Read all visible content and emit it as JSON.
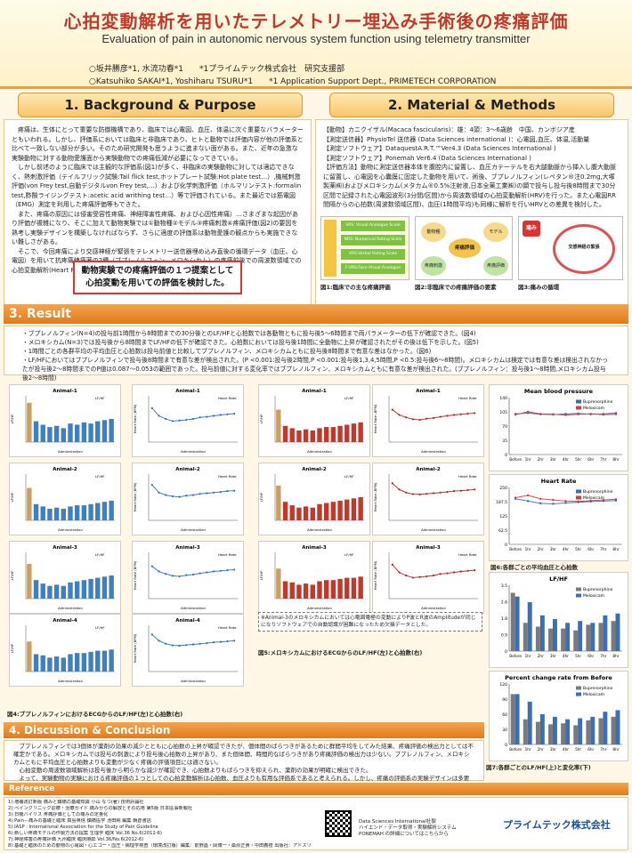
{
  "header": {
    "title_jp": "心拍変動解析を用いたテレメトリー埋込み手術後の疼痛評価",
    "title_en": "Evaluation of pain in autonomic nervous system function using telemetry transmitter",
    "author_line_1": "○坂井勝彦*1, 水流功春*1　　*1プライムテック株式会社　研究支援部",
    "author_line_2": "○Katsuhiko SAKAI*1, Yoshiharu TSURU*1　　*1 Application Support Dept., PRIMETECH CORPORATION"
  },
  "sections": {
    "background": "1. Background & Purpose",
    "methods": "2. Material & Methods",
    "result": "3. Result",
    "discussion": "4. Discussion & Conclusion",
    "reference": "Reference"
  },
  "background": {
    "paragraphs": [
      "疼痛は、生体にとって重要な防御機構であり、臨床では心電図、血圧、体温に次ぐ重要なバラメーターともいわれる。しかし、評価系においては臨床と非臨床であり、ヒトと動物では評価内容が他の評価系と比べて一致しない部分が多い。そのため研究開発も思うように進まない面がある。また、近年の急激な実験動物に対する動物愛護面から実験動物での疼痛低減が必要になってきている。",
      "しかし前述のように臨床では主観的な評価系(図1)が多く、非臨床の実験動物に対しては適応できなく、熱刺激評価（テイルフリック試験:Tail flick test,ホットプレート試験:Hot plate test…）,機械刺激評価(von Frey test,自動デジタルvon Frey test,…）および化学刺激評価（ホルマリンテスト:formalin test,酢酸ライジングテスト:acetic acid writhing test…）等で評価されている。また最近では筋電図（EMG）測定を利用した疼痛評価等もできた。",
      "また、疼痛の原因には侵害受容性疼痛、神経障害性疼痛、および心因性疼痛）…さまざまな起因があり評価が複雑になり、そこに加えて動物実験では①動物種②モデル③疼痛刺激④疼痛評価(図2)の要因を熟考し実験デザインを構築しなければならず、さらに適度の評価系は動物愛護の観点からも実施できない難しさがある。",
      "そこで、今回疼痛により交感神経が緊張をテレメトリー送信器埋め込み直後の循環データ（血圧、心電図）を用いて抗疼痛鎮痛薬の2種（ブプレノルフィン、メロキシカム）の疼痛前後での周波数領域での心拍変動解析(Heart Rate Variability)評価の可能性を検討した。(図3)"
    ],
    "conclusion_box": "動物実験での疼痛評価の１つ提案として心拍変動を用いての評価を検討した。"
  },
  "methods": {
    "lines": [
      "【動物】カニクイザル(Macaca fascicularis)：雄：4頭：3～6歳齢　中国、カンボジア産",
      "【測定送信器】PhysioTel 送信器 (Data Sciences international )：心電図,血圧、体温,活動量",
      "【測定ソフトウェア】DataquestA.R.T.™Ver4.3 (Data Sciences International )",
      "【測定ソフトウェア】Ponemah Ver6.4 (Data Sciences International )",
      "【評価方法】動物に測定送信器本体を腹腔内に留置し、血圧カテーテルを右大腿動脈から挿入し腹大動脈に留置し、心電図を心囊膜に固定した動物を用いて、術後、ブプレノルフィン(レペタン®注0.2mg,大塚製薬㈱)およびメロキシカム(メタカム®0.5%注射液,日本全薬工業㈱)の顕で投与し投与後8時間まで30分区間で記録された心電図波形(3分間/区間)から周波数領域の心拍変動解析(HRV)を行った。また心電図RR間隔からの心拍数(周波数領域区間)、血圧(1時間平均)も同様に解析を行いHRVとの差異を検討した。"
    ],
    "fig1_items": [
      "VAS: Visual Analogue Scale",
      "NRS: Numerical Rating Scale",
      "VRS:Verbal Rating Scale",
      "F-VRS:Face Visual Analogue Scale"
    ],
    "fig1_caption": "図1:臨床での主な疼痛評価",
    "fig2_center": "疼痛評価",
    "fig2_labels": [
      "動物種",
      "モデル",
      "疼痛刺激",
      "疼痛評価"
    ],
    "fig2_caption": "図2:非臨床での疼痛評価の要素",
    "fig3_center": "交感神経の緊張",
    "fig3_pain": "痛み",
    "fig3_caption": "図3:痛みの循環"
  },
  "result": {
    "bullets": [
      "・ブプレノルフィン(N=4)の投与前1時間から8時間までの30分後とのLF/HFと心拍数では各動物ともに投与後5～6時間まで両パラメーターの低下が確認できた。(図4)",
      "・メロキシカム(N=3)では投与後から8時間までLF/HFの低下が確認できた。心拍数においては投与後1時間に全動物に上昇が確認されたがその後は低下を示した。(図5)",
      "・1時間ごとの各群平均の平均血圧と心拍数は投与前値と比較してブプレノルフィン、メロキシカムともに投与後8時間まで有意な差はなかった。(図6)",
      "・LF/HFにおいてはブプレノルフィンで投与後8時間まで有意な差が検出された。(P <0.001:投与後2時間,P <0.001:投与後1,3,4,5時間,P <0.5:投与後6～8時間)。メロキシカムは検定では有意な差は検出されなかったが投与後2～8時間までのP値は0.087～0.053の範囲であった。投与前値に対する変化率ではブプレノルフィン、メロキシカムともに有意な差が検出された。(ブプレノルフィン：投与後1～8時間,メロキシカム投与後2～8時間)"
    ],
    "bup_labels": [
      "Animal-1",
      "Animal-2",
      "Animal-3",
      "Animal-4"
    ],
    "mel_labels": [
      "Animal-1",
      "Animal-2",
      "Animal-3",
      "Animal-4"
    ],
    "axis_x": "Administration",
    "axis_y_lfhf": "LF/HF",
    "axis_y_hr": "Heart Rate (BPM)",
    "legend_lfhf": "LF/HF",
    "legend_hr": "Heart Rate",
    "fig4_caption": "図4:ブプレノルフィンにおけるECGからのLF/HF(左)と心拍数(右)",
    "fig5_caption": "図5:メロキシカムにおけるECGからのLF/HF(左)と心拍数(右)",
    "fig5_note": "※Animal-3のメロキシカムにおいては心電図電極の変動によりP波とR波のAmplitudeが同じになりソフトウェアでの自動認識が困難になったため欠損データとした。",
    "mbp_title": "Mean blood pressure",
    "hr_title": "Heart Rate",
    "lfhf_title": "LF/HF",
    "pct_title": "Percent change rate from Before",
    "series_names": [
      "Buprenorphine",
      "Meloxicam"
    ],
    "fig6_caption": "図6:各群ごとの平均血圧と心拍数",
    "fig7_caption": "図7:各群ごとのLF/HF(上)と変化率(下)",
    "stat_note": "Each histogram/line the mean ±SE",
    "x_categories": [
      "Before",
      "1hr",
      "2hr",
      "3hr",
      "4hr",
      "5hr",
      "6hr",
      "7hr",
      "8hr"
    ]
  },
  "discussion": {
    "paragraphs": [
      "ブプレノルフィンでは3個体が薬剤の効果の減少とともに心拍数の上昇が確認できたが、個体間のばらつきがあるために群間平均をしてみた結果、疼痛評価の検出力としては不確定かである。メロキシカムでは投与の刺激により投与後心拍数の上昇があり、また個体間、時間的なばらつきがあり疼痛評価の検出力は少ない。ブプレノルフィン、メロキシカムともに平均血圧と心拍数よりも変動が少なく疼痛の評価項目には適さない。",
      "心拍変動の周波数領域解析は投与後から明らかな減少が確認でき、心拍数よりもばらつきを抑えられ、薬剤の効果が明確に検出できた。",
      "よって、実験動物の実験における疼痛評価の１つとしての心拍変動解析は心拍数、血圧よりも有用な評価系であると考えられる。しかし、疼痛の評価系の実験デザインは多要素からなり複雑になるため実験の疼痛評価の目的に合わせた評価方法を検討する必要がある。"
    ]
  },
  "references": [
    "1):増補改訂新版 痛みと鎮痛の基礎知識 小山 なつ(著) 技術評論社",
    "2):ペインクリニック診療・治療ガイド 痛みからの解放とその応用 第5版 日本医事新報社",
    "3):日機バイリス 疼痛評価としての痛みの定量化",
    "4):Pain－痛みの基礎と臨床 真島英信 鎮痛医学 池田純 編集 朝倉書店",
    "5):IASP : International Association for the Study of Pain Guideline",
    "6):新しい疼痛モデルの作製方法の提案 生理学 臨床 Vol.36 No.6(2012-6)",
    "7):神経障害の疼痛評価 九州臨床 臨床麻酔 Vol.36/No.6(2012-6)",
    "8):基礎と臨床のための動物の心電図・心エコー・血圧・病理学検査（環境改訂版）編集：前野昌・岡博一・桑原正貴・中田義禮 出版社：アドスリー"
  ],
  "footer": {
    "dsi_text": "Data Sciences International社製\nハイエンド・データ取得・実験解析システム\nPONEMAH の詳細についてはこちらから",
    "logo_text": "プライムテック株式会社"
  },
  "chart_data": [
    {
      "type": "bar",
      "title": "LF/HF",
      "series": [
        {
          "name": "Buprenorphine",
          "values": [
            3.1,
            1.5,
            1.3,
            1.2,
            1.2,
            1.1,
            1.4,
            1.5,
            1.6
          ]
        },
        {
          "name": "Meloxicam",
          "values": [
            2.9,
            2.6,
            1.9,
            1.7,
            1.5,
            1.6,
            1.5,
            1.9,
            2.0
          ]
        }
      ],
      "categories": [
        "Before",
        "1hr",
        "2hr",
        "3hr",
        "4hr",
        "5hr",
        "6hr",
        "7hr",
        "8hr"
      ],
      "ylim": [
        0,
        3.5
      ],
      "ylabel": "LF/HF"
    },
    {
      "type": "bar",
      "title": "Percent change rate from Before",
      "series": [
        {
          "name": "Buprenorphine",
          "values": [
            100,
            50,
            45,
            40,
            42,
            38,
            48,
            52,
            55
          ]
        },
        {
          "name": "Meloxicam",
          "values": [
            100,
            85,
            60,
            55,
            50,
            52,
            55,
            65,
            68
          ]
        }
      ],
      "categories": [
        "Before",
        "1hr",
        "2hr",
        "3hr",
        "4hr",
        "5hr",
        "6hr",
        "7hr",
        "8hr"
      ],
      "ylim": [
        0,
        120
      ],
      "ylabel": "Percent change rate from Before"
    },
    {
      "type": "line",
      "title": "Mean blood pressure",
      "series": [
        {
          "name": "Buprenorphine",
          "values": [
            100,
            102,
            99,
            98,
            100,
            101,
            99,
            100,
            102
          ]
        },
        {
          "name": "Meloxicam",
          "values": [
            98,
            105,
            100,
            99,
            97,
            99,
            100,
            98,
            99
          ]
        }
      ],
      "categories": [
        "Before",
        "1hr",
        "2hr",
        "3hr",
        "4hr",
        "5hr",
        "6hr",
        "7hr",
        "8hr"
      ],
      "ylim": [
        0,
        140
      ],
      "ylabel": "mmHg"
    },
    {
      "type": "line",
      "title": "Heart Rate",
      "series": [
        {
          "name": "Buprenorphine",
          "values": [
            200,
            190,
            180,
            178,
            182,
            185,
            188,
            190,
            192
          ]
        },
        {
          "name": "Meloxicam",
          "values": [
            205,
            215,
            200,
            195,
            190,
            188,
            192,
            195,
            198
          ]
        }
      ],
      "categories": [
        "Before",
        "1hr",
        "2hr",
        "3hr",
        "4hr",
        "5hr",
        "6hr",
        "7hr",
        "8hr"
      ],
      "ylim": [
        0,
        250
      ],
      "ylabel": "BPM"
    }
  ]
}
